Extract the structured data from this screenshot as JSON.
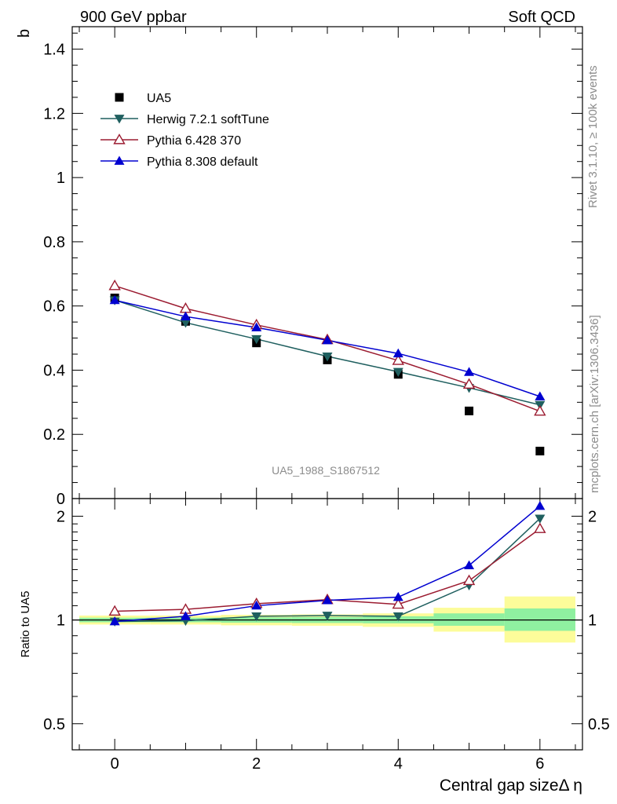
{
  "header": {
    "left": "900 GeV ppbar",
    "right": "Soft QCD"
  },
  "side_text": {
    "top": "Rivet 3.1.10, ≥ 100k events",
    "bottom": "mcplots.cern.ch [arXiv:1306.3436]"
  },
  "watermark": "UA5_1988_S1867512",
  "colors": {
    "data": "#000000",
    "herwig": "#1f5f5f",
    "pythia6": "#9b1b30",
    "pythia8": "#0000d0",
    "band_inner": "#8ff0a0",
    "band_outer": "#fcfc9a"
  },
  "chart_data": [
    {
      "type": "line",
      "title": "",
      "xlabel": "Central gap sizeΔ η",
      "ylabel": "b",
      "xlim": [
        -0.6,
        6.6
      ],
      "ylim": [
        0,
        1.47
      ],
      "y_ticks": [
        {
          "value": 0,
          "label": "0"
        },
        {
          "value": 0.2,
          "label": "0.2"
        },
        {
          "value": 0.4,
          "label": "0.4"
        },
        {
          "value": 0.6,
          "label": "0.6"
        },
        {
          "value": 0.8,
          "label": "0.8"
        },
        {
          "value": 1.0,
          "label": "1"
        },
        {
          "value": 1.2,
          "label": "1.2"
        },
        {
          "value": 1.4,
          "label": "1.4"
        }
      ],
      "legend_position": "top-left",
      "x": [
        0,
        1,
        2,
        3,
        4,
        5,
        6
      ],
      "series": [
        {
          "name": "UA5",
          "key": "data",
          "marker": "square",
          "values": [
            0.625,
            0.552,
            0.485,
            0.432,
            0.387,
            0.273,
            0.148
          ]
        },
        {
          "name": "Herwig 7.2.1 softTune",
          "key": "herwig",
          "marker": "tri-down",
          "values": [
            0.618,
            0.548,
            0.497,
            0.443,
            0.395,
            0.345,
            0.292
          ]
        },
        {
          "name": "Pythia 6.428 370",
          "key": "pythia6",
          "marker": "tri-open",
          "values": [
            0.663,
            0.592,
            0.541,
            0.495,
            0.43,
            0.356,
            0.272
          ]
        },
        {
          "name": "Pythia 8.308 default",
          "key": "pythia8",
          "marker": "tri-up",
          "values": [
            0.618,
            0.567,
            0.533,
            0.493,
            0.452,
            0.394,
            0.318
          ]
        }
      ]
    },
    {
      "type": "line",
      "title": "",
      "xlabel": "Central gap sizeΔ η",
      "ylabel": "Ratio to UA5",
      "xlim": [
        -0.6,
        6.6
      ],
      "ylim": [
        0.42,
        2.25
      ],
      "y_scale": "log",
      "x_ticks": [
        {
          "value": 0,
          "label": "0"
        },
        {
          "value": 2,
          "label": "2"
        },
        {
          "value": 4,
          "label": "4"
        },
        {
          "value": 6,
          "label": "6"
        }
      ],
      "y_ticks": [
        {
          "value": 0.5,
          "label": "0.5"
        },
        {
          "value": 1,
          "label": "1"
        },
        {
          "value": 2,
          "label": "2"
        }
      ],
      "x": [
        0,
        1,
        2,
        3,
        4,
        5,
        6
      ],
      "bands": [
        {
          "x": [
            -0.5,
            0.5
          ],
          "inner": [
            0.985,
            1.015
          ],
          "outer": [
            0.97,
            1.03
          ]
        },
        {
          "x": [
            0.5,
            1.5
          ],
          "inner": [
            0.985,
            1.015
          ],
          "outer": [
            0.97,
            1.03
          ]
        },
        {
          "x": [
            1.5,
            2.5
          ],
          "inner": [
            0.982,
            1.018
          ],
          "outer": [
            0.965,
            1.035
          ]
        },
        {
          "x": [
            2.5,
            3.5
          ],
          "inner": [
            0.98,
            1.02
          ],
          "outer": [
            0.962,
            1.038
          ]
        },
        {
          "x": [
            3.5,
            4.5
          ],
          "inner": [
            0.978,
            1.025
          ],
          "outer": [
            0.955,
            1.045
          ]
        },
        {
          "x": [
            4.5,
            5.5
          ],
          "inner": [
            0.962,
            1.045
          ],
          "outer": [
            0.925,
            1.085
          ]
        },
        {
          "x": [
            5.5,
            6.5
          ],
          "inner": [
            0.93,
            1.08
          ],
          "outer": [
            0.86,
            1.17
          ]
        }
      ],
      "series": [
        {
          "name": "Herwig 7.2.1 softTune",
          "key": "herwig",
          "marker": "tri-down",
          "values": [
            0.99,
            0.995,
            1.025,
            1.03,
            1.025,
            1.26,
            1.97
          ]
        },
        {
          "name": "Pythia 6.428 370",
          "key": "pythia6",
          "marker": "tri-open",
          "values": [
            1.06,
            1.073,
            1.115,
            1.145,
            1.11,
            1.3,
            1.84
          ]
        },
        {
          "name": "Pythia 8.308 default",
          "key": "pythia8",
          "marker": "tri-up",
          "values": [
            0.99,
            1.025,
            1.1,
            1.14,
            1.165,
            1.44,
            2.14
          ]
        }
      ]
    }
  ]
}
